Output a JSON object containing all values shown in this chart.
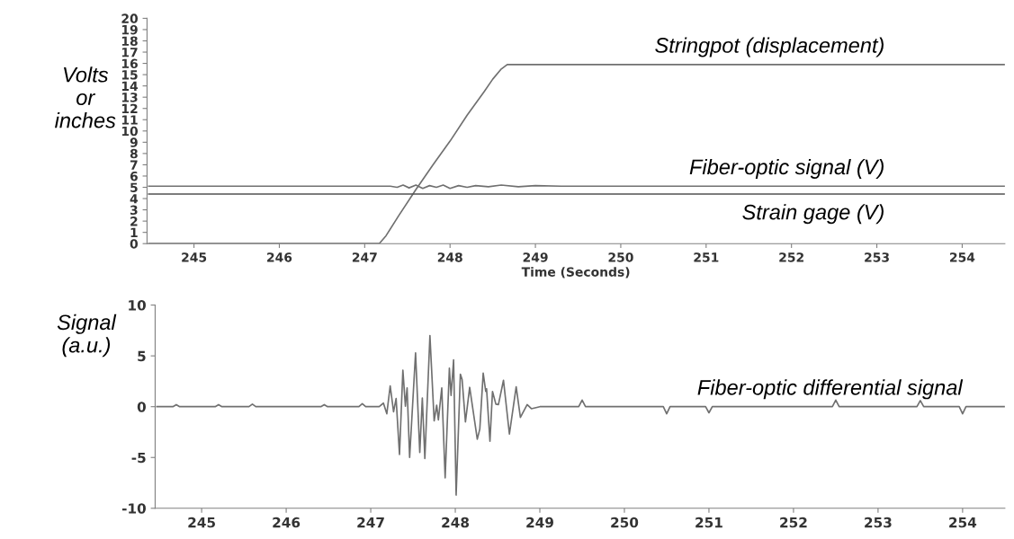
{
  "chart_data": [
    {
      "type": "line",
      "ylabel": "Volts\nor\ninches",
      "xlabel": "Time (Seconds)",
      "xlim": [
        244.45,
        254.5
      ],
      "xticks": [
        245,
        246,
        247,
        248,
        249,
        250,
        251,
        252,
        253,
        254
      ],
      "ylim": [
        0,
        20
      ],
      "yticks": [
        0,
        1,
        2,
        3,
        4,
        5,
        6,
        7,
        8,
        9,
        10,
        11,
        12,
        13,
        14,
        15,
        16,
        17,
        18,
        19,
        20
      ],
      "grid": false,
      "legend": false,
      "marker": "none",
      "line_style": "solid",
      "series": [
        {
          "name": "Stringpot (displacement)",
          "color": "#707070",
          "x": [
            244.47,
            247.17,
            247.25,
            247.4,
            247.6,
            247.8,
            248.0,
            248.2,
            248.4,
            248.5,
            248.6,
            248.67,
            254.5
          ],
          "values": [
            0,
            0,
            0.7,
            2.5,
            4.8,
            7.0,
            9.1,
            11.4,
            13.5,
            14.6,
            15.5,
            15.9,
            15.9
          ]
        },
        {
          "name": "Fiber-optic signal (V)",
          "color": "#707070",
          "x": [
            244.47,
            247.3,
            247.38,
            247.45,
            247.52,
            247.6,
            247.68,
            247.76,
            247.84,
            247.92,
            248.0,
            248.1,
            248.2,
            248.3,
            248.45,
            248.6,
            248.8,
            249.0,
            249.3,
            254.5
          ],
          "values": [
            5.1,
            5.1,
            5.0,
            5.2,
            4.95,
            5.2,
            4.9,
            5.15,
            5.0,
            5.2,
            4.9,
            5.15,
            5.0,
            5.15,
            5.05,
            5.2,
            5.05,
            5.15,
            5.1,
            5.1
          ]
        },
        {
          "name": "Strain gage (V)",
          "color": "#505050",
          "x": [
            244.47,
            254.5
          ],
          "values": [
            4.4,
            4.4
          ]
        }
      ]
    },
    {
      "type": "line",
      "ylabel": "Signal\n(a.u.)",
      "xlim": [
        244.45,
        254.5
      ],
      "xticks": [
        245,
        246,
        247,
        248,
        249,
        250,
        251,
        252,
        253,
        254
      ],
      "ylim": [
        -10,
        10
      ],
      "yticks": [
        {
          "value": -10,
          "label": "-10"
        },
        {
          "value": -5,
          "label": "-5"
        },
        0,
        5,
        10
      ],
      "grid": false,
      "legend": false,
      "marker": "none",
      "line_style": "solid",
      "series": [
        {
          "name": "Fiber-optic differential signal",
          "color": "#707070",
          "x": [
            244.47,
            244.66,
            244.7,
            244.74,
            245.16,
            245.2,
            245.24,
            245.56,
            245.6,
            245.64,
            246.41,
            246.45,
            246.49,
            246.86,
            246.9,
            246.94,
            247.1,
            247.15,
            247.19,
            247.23,
            247.27,
            247.3,
            247.34,
            247.38,
            247.41,
            247.43,
            247.46,
            247.53,
            247.58,
            247.61,
            247.64,
            247.7,
            247.75,
            247.78,
            247.8,
            247.84,
            247.88,
            247.93,
            247.95,
            247.98,
            248.01,
            248.06,
            248.08,
            248.12,
            248.17,
            248.26,
            248.29,
            248.33,
            248.36,
            248.37,
            248.41,
            248.44,
            248.48,
            248.51,
            248.57,
            248.64,
            248.72,
            248.77,
            248.85,
            248.9,
            249.0,
            249.46,
            249.5,
            249.54,
            250.46,
            250.5,
            250.54,
            250.96,
            251.0,
            251.04,
            252.46,
            252.5,
            252.54,
            253.46,
            253.5,
            253.54,
            253.96,
            254.0,
            254.04,
            254.5
          ],
          "values": [
            0,
            0,
            0.2,
            0,
            0,
            0.2,
            0,
            0,
            0.25,
            0,
            0,
            0.2,
            0,
            0,
            0.3,
            0,
            0,
            0.35,
            -0.7,
            2.05,
            -0.5,
            0.8,
            -4.7,
            3.6,
            0.05,
            1.85,
            -5.0,
            5.3,
            -4.5,
            0.85,
            -5.1,
            7.0,
            -1.4,
            0.15,
            -1.3,
            1.85,
            -7.0,
            3.8,
            1.1,
            4.6,
            -8.7,
            3.2,
            2.7,
            -1.5,
            1.9,
            -3.2,
            -2.2,
            3.3,
            1.5,
            1.75,
            -3.4,
            1.5,
            0.25,
            0.2,
            2.6,
            -2.7,
            1.95,
            -1.05,
            0.2,
            -0.2,
            0,
            0,
            0.65,
            0,
            0,
            -0.7,
            0,
            0,
            -0.6,
            0,
            0,
            0.65,
            0,
            0,
            0.6,
            0,
            0,
            -0.7,
            0,
            0
          ]
        }
      ]
    }
  ]
}
